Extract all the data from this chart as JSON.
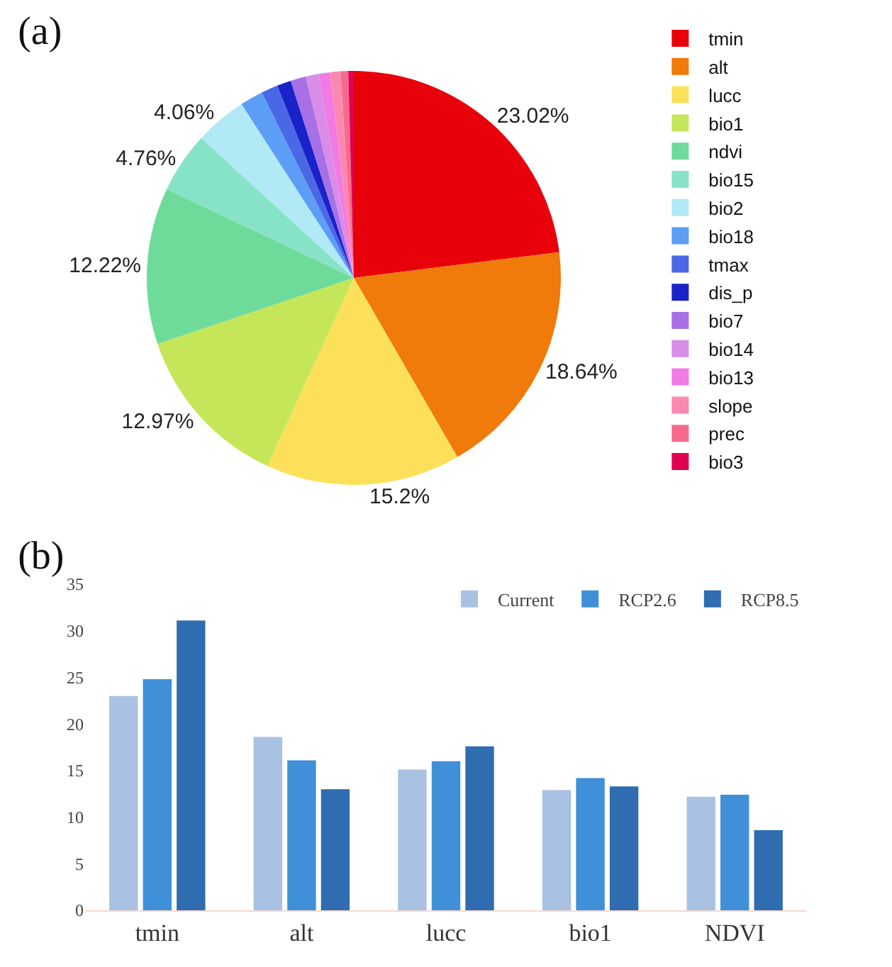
{
  "chart_data": [
    {
      "type": "pie",
      "title": "(a)",
      "categories": [
        "tmin",
        "alt",
        "lucc",
        "bio1",
        "ndvi",
        "bio15",
        "bio2",
        "bio18",
        "tmax",
        "dis_p",
        "bio7",
        "bio14",
        "bio13",
        "slope",
        "prec",
        "bio3"
      ],
      "values": [
        23.02,
        18.64,
        15.2,
        12.97,
        12.22,
        4.76,
        4.06,
        1.8,
        1.3,
        1.1,
        1.2,
        1.0,
        0.9,
        0.8,
        0.6,
        0.43
      ],
      "value_labels": [
        "23.02%",
        "18.64%",
        "15.2%",
        "12.97%",
        "12.22%",
        "4.76%",
        "4.06%",
        null,
        null,
        null,
        null,
        null,
        null,
        null,
        null,
        null
      ],
      "colors": [
        "#e8000b",
        "#f07a0a",
        "#fde05a",
        "#c6e65a",
        "#6edb9a",
        "#86e3c8",
        "#b1e9f4",
        "#5c9ef5",
        "#4a67e6",
        "#1a22c9",
        "#a770e6",
        "#d98ce8",
        "#f27ae4",
        "#fb88b0",
        "#f76a8e",
        "#e0004f"
      ],
      "legend": "right"
    },
    {
      "type": "bar",
      "title": "(b)",
      "categories": [
        "tmin",
        "alt",
        "lucc",
        "bio1",
        "NDVI"
      ],
      "series": [
        {
          "name": "Current",
          "color": "#a9c1e3",
          "values": [
            23.0,
            18.6,
            15.1,
            12.9,
            12.2
          ]
        },
        {
          "name": "RCP2.6",
          "color": "#3f8fd9",
          "values": [
            24.8,
            16.1,
            16.0,
            14.2,
            12.4
          ]
        },
        {
          "name": "RCP8.5",
          "color": "#2f6db0",
          "values": [
            31.1,
            13.0,
            17.6,
            13.3,
            8.6
          ]
        }
      ],
      "ylim": [
        0,
        35
      ],
      "yticks": [
        0,
        5,
        10,
        15,
        20,
        25,
        30,
        35
      ],
      "legend": "top right"
    }
  ]
}
